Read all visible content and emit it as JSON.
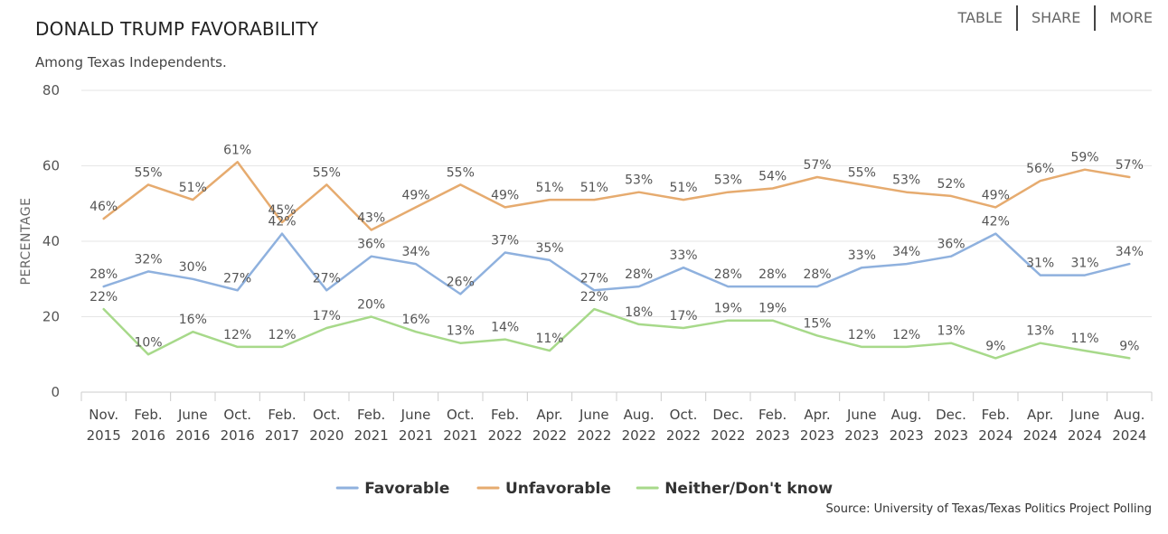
{
  "header": {
    "title": "DONALD TRUMP FAVORABILITY",
    "subtitle": "Among Texas Independents."
  },
  "nav": {
    "table": "TABLE",
    "share": "SHARE",
    "more": "MORE"
  },
  "source": "Source: University of Texas/Texas Politics Project Polling",
  "colors": {
    "favorable": "#8fb1de",
    "unfavorable": "#e6ab6f",
    "neither": "#a7d98a",
    "grid": "#e6e6e6",
    "axis": "#cccccc"
  },
  "chart_data": {
    "type": "line",
    "title": "DONALD TRUMP FAVORABILITY",
    "subtitle": "Among Texas Independents.",
    "xlabel": "",
    "ylabel": "PERCENTAGE",
    "ylim": [
      0,
      80
    ],
    "yticks": [
      0,
      20,
      40,
      60,
      80
    ],
    "grid": true,
    "legend": "bottom-center",
    "categories": [
      [
        "Nov.",
        "2015"
      ],
      [
        "Feb.",
        "2016"
      ],
      [
        "June",
        "2016"
      ],
      [
        "Oct.",
        "2016"
      ],
      [
        "Feb.",
        "2017"
      ],
      [
        "Oct.",
        "2020"
      ],
      [
        "Feb.",
        "2021"
      ],
      [
        "June",
        "2021"
      ],
      [
        "Oct.",
        "2021"
      ],
      [
        "Feb.",
        "2022"
      ],
      [
        "Apr.",
        "2022"
      ],
      [
        "June",
        "2022"
      ],
      [
        "Aug.",
        "2022"
      ],
      [
        "Oct.",
        "2022"
      ],
      [
        "Dec.",
        "2022"
      ],
      [
        "Feb.",
        "2023"
      ],
      [
        "Apr.",
        "2023"
      ],
      [
        "June",
        "2023"
      ],
      [
        "Aug.",
        "2023"
      ],
      [
        "Dec.",
        "2023"
      ],
      [
        "Feb.",
        "2024"
      ],
      [
        "Apr.",
        "2024"
      ],
      [
        "June",
        "2024"
      ],
      [
        "Aug.",
        "2024"
      ]
    ],
    "series": [
      {
        "name": "Favorable",
        "color": "#8fb1de",
        "values": [
          28,
          32,
          30,
          27,
          42,
          27,
          36,
          34,
          26,
          37,
          35,
          27,
          28,
          33,
          28,
          28,
          28,
          33,
          34,
          36,
          42,
          31,
          31,
          34
        ]
      },
      {
        "name": "Unfavorable",
        "color": "#e6ab6f",
        "values": [
          46,
          55,
          51,
          61,
          45,
          55,
          43,
          49,
          55,
          49,
          51,
          51,
          53,
          51,
          53,
          54,
          57,
          55,
          53,
          52,
          49,
          56,
          59,
          57
        ]
      },
      {
        "name": "Neither/Don't know",
        "color": "#a7d98a",
        "values": [
          22,
          10,
          16,
          12,
          12,
          17,
          20,
          16,
          13,
          14,
          11,
          22,
          18,
          17,
          19,
          19,
          15,
          12,
          12,
          13,
          9,
          13,
          11,
          9
        ]
      }
    ]
  }
}
